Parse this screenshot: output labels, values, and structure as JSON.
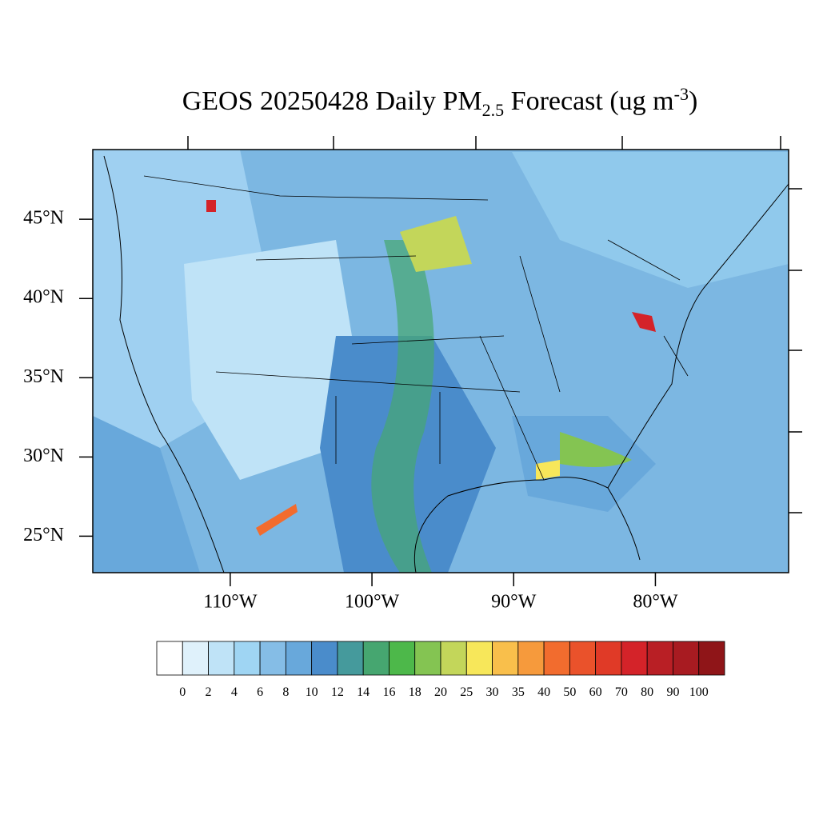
{
  "map": {
    "title": {
      "main": "GEOS 20250428 Daily PM",
      "sub": "2.5",
      "rest": " Forecast (ug m",
      "sup": "-3",
      "end": ")"
    },
    "xlim": [
      -119.7,
      -70.6
    ],
    "ylim": [
      22.7,
      49.4
    ],
    "yticks": [
      {
        "value": 45,
        "label": "45°N"
      },
      {
        "value": 40,
        "label": "40°N"
      },
      {
        "value": 35,
        "label": "35°N"
      },
      {
        "value": 30,
        "label": "30°N"
      },
      {
        "value": 25,
        "label": "25°N"
      }
    ],
    "xticks": [
      {
        "value": -110,
        "label": "110°W"
      },
      {
        "value": -100,
        "label": "100°W"
      },
      {
        "value": -90,
        "label": "90°W"
      },
      {
        "value": -80,
        "label": "80°W"
      }
    ],
    "colorbar": {
      "colors": [
        "#ffffff",
        "#dff1fb",
        "#bfe3f7",
        "#9fd5f3",
        "#85bde6",
        "#68a8db",
        "#4a8ccb",
        "#459a9c",
        "#46a670",
        "#4db84a",
        "#84c452",
        "#c3d65a",
        "#f7e75a",
        "#f9bf4b",
        "#f69a3c",
        "#f26c2e",
        "#ea522b",
        "#e03a27",
        "#d42329",
        "#b91f25",
        "#a81b21",
        "#8f1518"
      ],
      "levels": [
        0,
        2,
        4,
        6,
        8,
        10,
        12,
        14,
        16,
        18,
        20,
        25,
        30,
        35,
        40,
        50,
        60,
        70,
        80,
        90,
        100
      ]
    }
  }
}
